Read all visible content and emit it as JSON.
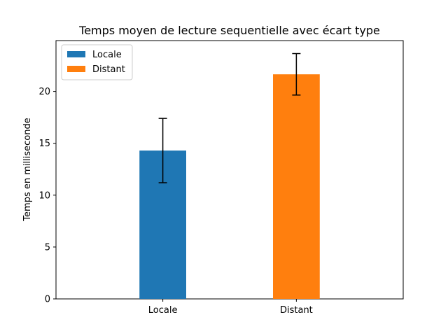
{
  "chart_data": {
    "type": "bar",
    "title": "Temps moyen de lecture sequentielle avec écart type",
    "xlabel": "",
    "ylabel": "Temps en milliseconde",
    "categories": [
      "Locale",
      "Distant"
    ],
    "values": [
      14.3,
      21.65
    ],
    "errors": [
      3.1,
      2.0
    ],
    "colors": [
      "#1f77b4",
      "#ff7f0e"
    ],
    "ylim": [
      0,
      24.9
    ],
    "yticks": [
      0,
      5,
      10,
      15,
      20
    ],
    "grid": false,
    "legend": {
      "placement": "top-left",
      "entries": [
        {
          "label": "Locale",
          "color": "#1f77b4"
        },
        {
          "label": "Distant",
          "color": "#ff7f0e"
        }
      ]
    }
  }
}
